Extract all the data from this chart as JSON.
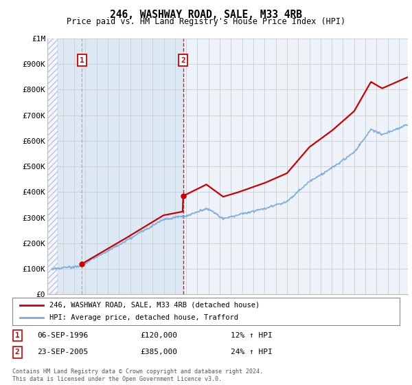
{
  "title": "246, WASHWAY ROAD, SALE, M33 4RB",
  "subtitle": "Price paid vs. HM Land Registry's House Price Index (HPI)",
  "ylim": [
    0,
    1000000
  ],
  "yticks": [
    0,
    100000,
    200000,
    300000,
    400000,
    500000,
    600000,
    700000,
    800000,
    900000,
    1000000
  ],
  "xstart": 1993.6,
  "xend": 2025.8,
  "sale1_date": 1996.69,
  "sale1_price": 120000,
  "sale2_date": 2005.73,
  "sale2_price": 385000,
  "red_line_color": "#cc0000",
  "blue_line_color": "#7aaadd",
  "grid_color": "#cccccc",
  "vline1_color": "#aaaaaa",
  "vline2_color": "#dd0000",
  "bg_left_color": "#dde8f5",
  "bg_right_color": "#eef3fa",
  "legend_line1": "246, WASHWAY ROAD, SALE, M33 4RB (detached house)",
  "legend_line2": "HPI: Average price, detached house, Trafford",
  "transaction1_label": "1",
  "transaction1_date": "06-SEP-1996",
  "transaction1_price": "£120,000",
  "transaction1_hpi": "12% ↑ HPI",
  "transaction2_label": "2",
  "transaction2_date": "23-SEP-2005",
  "transaction2_price": "£385,000",
  "transaction2_hpi": "24% ↑ HPI",
  "footer": "Contains HM Land Registry data © Crown copyright and database right 2024.\nThis data is licensed under the Open Government Licence v3.0."
}
